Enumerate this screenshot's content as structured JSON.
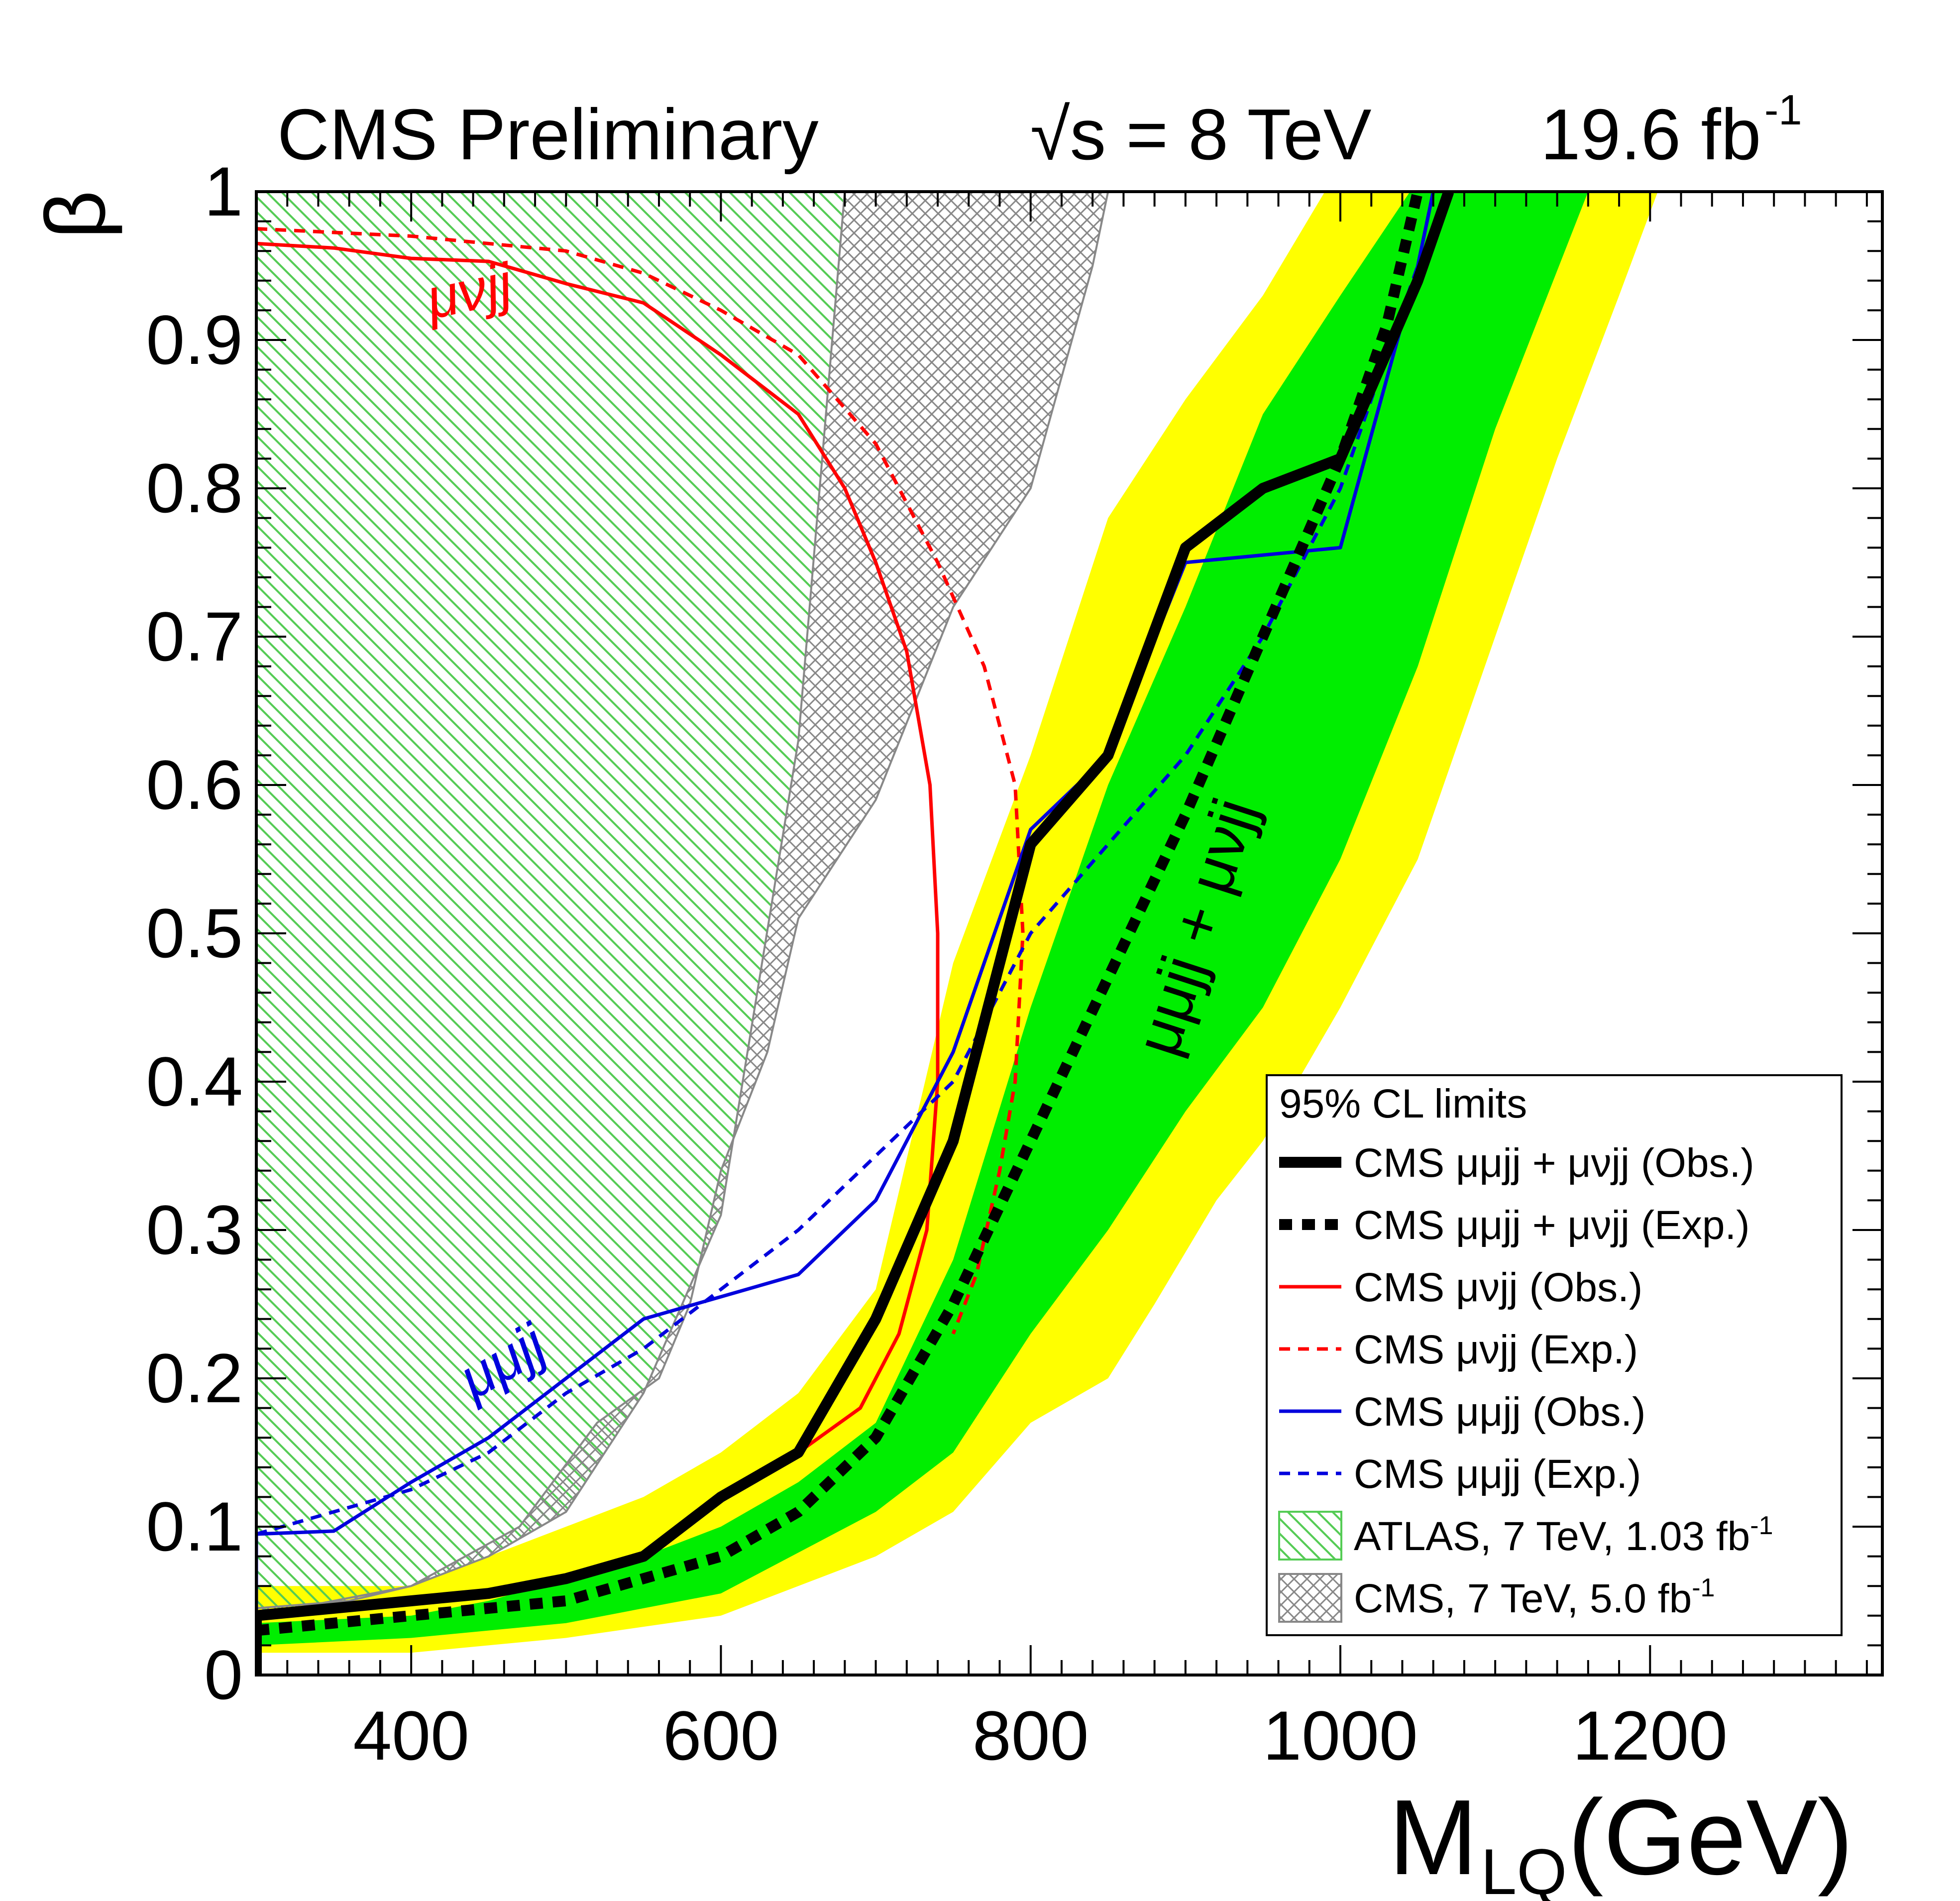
{
  "chart_data": {
    "type": "line",
    "header": {
      "experiment": "CMS Preliminary",
      "energy": "√s = 8 TeV",
      "lumi_value": "19.6 fb",
      "lumi_exp": "-1"
    },
    "xlabel": {
      "main": "M",
      "sub": "LQ",
      "unit": " (GeV)"
    },
    "ylabel": "β",
    "xlim": [
      300,
      1350
    ],
    "ylim": [
      0,
      1
    ],
    "x_ticks": [
      400,
      600,
      800,
      1000,
      1200
    ],
    "x_tick_labels": [
      "400",
      "600",
      "800",
      "1000",
      "1200"
    ],
    "y_ticks": [
      0,
      0.1,
      0.2,
      0.3,
      0.4,
      0.5,
      0.6,
      0.7,
      0.8,
      0.9,
      1
    ],
    "y_tick_labels": [
      "0",
      "0.1",
      "0.2",
      "0.3",
      "0.4",
      "0.5",
      "0.6",
      "0.7",
      "0.8",
      "0.9",
      "1"
    ],
    "bands": {
      "expected_2sigma": {
        "color": "#ffff00",
        "lower": [
          [
            300,
            0.015
          ],
          [
            400,
            0.015
          ],
          [
            500,
            0.025
          ],
          [
            600,
            0.04
          ],
          [
            700,
            0.08
          ],
          [
            750,
            0.11
          ],
          [
            800,
            0.17
          ],
          [
            850,
            0.2
          ],
          [
            880,
            0.25
          ],
          [
            920,
            0.32
          ],
          [
            950,
            0.36
          ],
          [
            1000,
            0.45
          ],
          [
            1050,
            0.55
          ],
          [
            1100,
            0.7
          ],
          [
            1140,
            0.82
          ],
          [
            1180,
            0.93
          ],
          [
            1205,
            1.0
          ]
        ],
        "upper": [
          [
            300,
            0.06
          ],
          [
            400,
            0.06
          ],
          [
            450,
            0.08
          ],
          [
            500,
            0.1
          ],
          [
            550,
            0.12
          ],
          [
            600,
            0.15
          ],
          [
            650,
            0.19
          ],
          [
            700,
            0.26
          ],
          [
            750,
            0.48
          ],
          [
            800,
            0.62
          ],
          [
            850,
            0.78
          ],
          [
            900,
            0.86
          ],
          [
            950,
            0.93
          ],
          [
            990,
            1.0
          ]
        ]
      },
      "expected_1sigma": {
        "color": "#00ee00",
        "lower": [
          [
            300,
            0.02
          ],
          [
            400,
            0.025
          ],
          [
            500,
            0.035
          ],
          [
            600,
            0.055
          ],
          [
            700,
            0.11
          ],
          [
            750,
            0.15
          ],
          [
            800,
            0.23
          ],
          [
            850,
            0.3
          ],
          [
            900,
            0.38
          ],
          [
            950,
            0.45
          ],
          [
            1000,
            0.55
          ],
          [
            1050,
            0.68
          ],
          [
            1100,
            0.84
          ],
          [
            1160,
            1.0
          ]
        ],
        "upper": [
          [
            300,
            0.035
          ],
          [
            400,
            0.04
          ],
          [
            450,
            0.05
          ],
          [
            500,
            0.065
          ],
          [
            550,
            0.08
          ],
          [
            600,
            0.1
          ],
          [
            650,
            0.13
          ],
          [
            700,
            0.17
          ],
          [
            750,
            0.28
          ],
          [
            800,
            0.45
          ],
          [
            850,
            0.6
          ],
          [
            900,
            0.72
          ],
          [
            950,
            0.85
          ],
          [
            1000,
            0.93
          ],
          [
            1045,
            1.0
          ]
        ]
      }
    },
    "excluded_regions": [
      {
        "name": "ATLAS, 7 TeV, 1.03 fb",
        "exp": "-1",
        "color": "#55cc55",
        "boundary": [
          [
            300,
            0.04
          ],
          [
            350,
            0.05
          ],
          [
            400,
            0.06
          ],
          [
            450,
            0.08
          ],
          [
            500,
            0.11
          ],
          [
            550,
            0.19
          ],
          [
            600,
            0.31
          ],
          [
            650,
            0.63
          ],
          [
            680,
            1.0
          ]
        ]
      },
      {
        "name": "CMS, 7 TeV, 5.0 fb",
        "exp": "-1",
        "color": "#888888",
        "left": [
          [
            300,
            0.04
          ],
          [
            350,
            0.05
          ],
          [
            400,
            0.06
          ],
          [
            450,
            0.08
          ],
          [
            500,
            0.11
          ],
          [
            550,
            0.19
          ],
          [
            600,
            0.31
          ],
          [
            650,
            0.63
          ],
          [
            680,
            1.0
          ]
        ],
        "right": [
          [
            300,
            0.045
          ],
          [
            360,
            0.05
          ],
          [
            400,
            0.06
          ],
          [
            470,
            0.1
          ],
          [
            520,
            0.17
          ],
          [
            560,
            0.2
          ],
          [
            580,
            0.25
          ],
          [
            600,
            0.34
          ],
          [
            630,
            0.42
          ],
          [
            650,
            0.51
          ],
          [
            700,
            0.59
          ],
          [
            750,
            0.72
          ],
          [
            800,
            0.8
          ],
          [
            840,
            0.95
          ],
          [
            850,
            1.0
          ]
        ]
      }
    ],
    "series": [
      {
        "name": "CMS μμjj + μνjj (Obs.)",
        "color": "#000000",
        "style": "solid",
        "weight": "thick",
        "points": [
          [
            300,
            0.0
          ],
          [
            300,
            0.04
          ],
          [
            350,
            0.045
          ],
          [
            400,
            0.05
          ],
          [
            450,
            0.055
          ],
          [
            500,
            0.065
          ],
          [
            550,
            0.08
          ],
          [
            600,
            0.12
          ],
          [
            650,
            0.15
          ],
          [
            700,
            0.24
          ],
          [
            750,
            0.36
          ],
          [
            800,
            0.56
          ],
          [
            850,
            0.62
          ],
          [
            900,
            0.76
          ],
          [
            950,
            0.8
          ],
          [
            1000,
            0.82
          ],
          [
            1050,
            0.94
          ],
          [
            1070,
            1.0
          ]
        ]
      },
      {
        "name": "CMS μμjj + μνjj (Exp.)",
        "color": "#000000",
        "style": "dashed",
        "weight": "thick",
        "points": [
          [
            300,
            0.03
          ],
          [
            350,
            0.035
          ],
          [
            400,
            0.04
          ],
          [
            500,
            0.05
          ],
          [
            550,
            0.065
          ],
          [
            600,
            0.08
          ],
          [
            650,
            0.11
          ],
          [
            700,
            0.16
          ],
          [
            750,
            0.25
          ],
          [
            800,
            0.36
          ],
          [
            850,
            0.47
          ],
          [
            900,
            0.58
          ],
          [
            950,
            0.7
          ],
          [
            1000,
            0.82
          ],
          [
            1030,
            0.91
          ],
          [
            1050,
            1.0
          ]
        ]
      },
      {
        "name": "CMS μνjj (Obs.)",
        "color": "#ff0000",
        "style": "solid",
        "weight": "normal",
        "points": [
          [
            300,
            0.965
          ],
          [
            350,
            0.962
          ],
          [
            400,
            0.955
          ],
          [
            450,
            0.953
          ],
          [
            500,
            0.938
          ],
          [
            550,
            0.925
          ],
          [
            600,
            0.89
          ],
          [
            650,
            0.85
          ],
          [
            680,
            0.8
          ],
          [
            700,
            0.75
          ],
          [
            720,
            0.69
          ],
          [
            735,
            0.6
          ],
          [
            740,
            0.5
          ],
          [
            740,
            0.4
          ],
          [
            733,
            0.3
          ],
          [
            715,
            0.23
          ],
          [
            690,
            0.18
          ],
          [
            650,
            0.15
          ]
        ]
      },
      {
        "name": "CMS μνjj (Exp.)",
        "color": "#ff0000",
        "style": "dashed",
        "weight": "normal",
        "points": [
          [
            300,
            0.975
          ],
          [
            400,
            0.97
          ],
          [
            500,
            0.96
          ],
          [
            550,
            0.945
          ],
          [
            600,
            0.92
          ],
          [
            650,
            0.89
          ],
          [
            700,
            0.83
          ],
          [
            740,
            0.75
          ],
          [
            770,
            0.68
          ],
          [
            790,
            0.6
          ],
          [
            795,
            0.5
          ],
          [
            790,
            0.4
          ],
          [
            780,
            0.34
          ],
          [
            765,
            0.27
          ],
          [
            750,
            0.23
          ]
        ]
      },
      {
        "name": "CMS μμjj (Obs.)",
        "color": "#0000dd",
        "style": "solid",
        "weight": "normal",
        "points": [
          [
            300,
            0.03
          ],
          [
            300,
            0.095
          ],
          [
            350,
            0.097
          ],
          [
            400,
            0.13
          ],
          [
            450,
            0.16
          ],
          [
            500,
            0.2
          ],
          [
            550,
            0.24
          ],
          [
            600,
            0.255
          ],
          [
            650,
            0.27
          ],
          [
            700,
            0.32
          ],
          [
            750,
            0.42
          ],
          [
            800,
            0.57
          ],
          [
            850,
            0.62
          ],
          [
            900,
            0.75
          ],
          [
            950,
            0.755
          ],
          [
            1000,
            0.76
          ],
          [
            1050,
            0.95
          ],
          [
            1060,
            1.0
          ]
        ]
      },
      {
        "name": "CMS μμjj (Exp.)",
        "color": "#0000dd",
        "style": "dashed",
        "weight": "normal",
        "points": [
          [
            300,
            0.095
          ],
          [
            400,
            0.125
          ],
          [
            450,
            0.15
          ],
          [
            500,
            0.19
          ],
          [
            550,
            0.22
          ],
          [
            600,
            0.26
          ],
          [
            650,
            0.3
          ],
          [
            700,
            0.35
          ],
          [
            750,
            0.4
          ],
          [
            800,
            0.5
          ],
          [
            850,
            0.56
          ],
          [
            900,
            0.62
          ],
          [
            950,
            0.7
          ],
          [
            1000,
            0.8
          ],
          [
            1050,
            0.95
          ],
          [
            1060,
            1.0
          ]
        ]
      }
    ],
    "legend": {
      "title": "95% CL limits",
      "position": "bottom-right",
      "entries": [
        "CMS μμjj + μνjj (Obs.)",
        "CMS μμjj + μνjj (Exp.)",
        "CMS μνjj (Obs.)",
        "CMS μνjj (Exp.)",
        "CMS μμjj (Obs.)",
        "CMS μμjj (Exp.)",
        "ATLAS, 7 TeV, 1.03 fb",
        "CMS, 7 TeV, 5.0 fb"
      ]
    },
    "annotations": [
      {
        "text": "μνjj",
        "color": "#ff0000",
        "x": 440,
        "y": 0.92,
        "angle": -12
      },
      {
        "text": "μμjj",
        "color": "#0000dd",
        "x": 465,
        "y": 0.2,
        "angle": -30
      },
      {
        "text": "μμjj + μνjj",
        "color": "#000000",
        "x": 920,
        "y": 0.5,
        "angle": -72
      }
    ]
  }
}
